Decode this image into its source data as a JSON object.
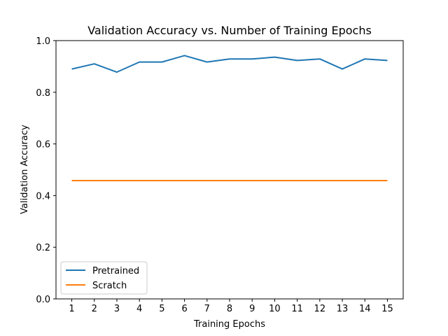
{
  "chart_data": {
    "type": "line",
    "title": "Validation Accuracy vs. Number of Training Epochs",
    "xlabel": "Training Epochs",
    "ylabel": "Validation Accuracy",
    "x": [
      1,
      2,
      3,
      4,
      5,
      6,
      7,
      8,
      9,
      10,
      11,
      12,
      13,
      14,
      15
    ],
    "xlim": [
      0.3,
      15.7
    ],
    "ylim": [
      0,
      1.0
    ],
    "yticks": [
      "0.0",
      "0.2",
      "0.4",
      "0.6",
      "0.8",
      "1.0"
    ],
    "xticks": [
      "1",
      "2",
      "3",
      "4",
      "5",
      "6",
      "7",
      "8",
      "9",
      "10",
      "11",
      "12",
      "13",
      "14",
      "15"
    ],
    "grid": false,
    "legend_position": "lower-left",
    "series": [
      {
        "name": "Pretrained",
        "color": "#1f77b4",
        "values": [
          0.89,
          0.91,
          0.878,
          0.917,
          0.917,
          0.942,
          0.917,
          0.929,
          0.929,
          0.936,
          0.923,
          0.929,
          0.89,
          0.929,
          0.923
        ]
      },
      {
        "name": "Scratch",
        "color": "#ff7f0e",
        "values": [
          0.458,
          0.458,
          0.458,
          0.458,
          0.458,
          0.458,
          0.458,
          0.458,
          0.458,
          0.458,
          0.458,
          0.458,
          0.458,
          0.458,
          0.458
        ]
      }
    ]
  }
}
